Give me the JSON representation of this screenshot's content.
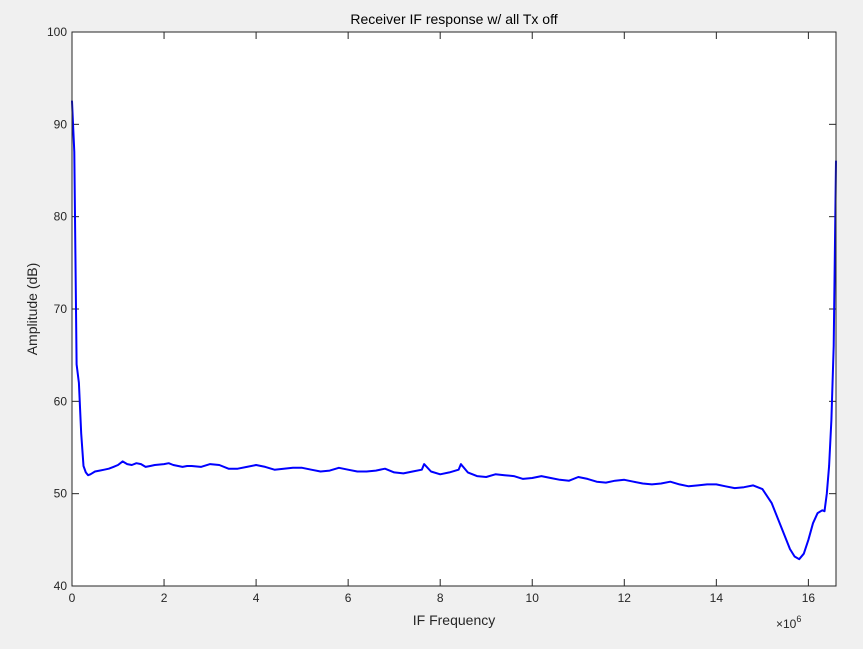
{
  "chart_data": {
    "type": "line",
    "title": "Receiver IF response w/ all Tx off",
    "xlabel": "IF Frequency",
    "ylabel": "Amplitude (dB)",
    "x_multiplier_base": "×10",
    "x_multiplier_exp": "6",
    "xlim": [
      0,
      16.6
    ],
    "ylim": [
      40,
      100
    ],
    "x_ticks": [
      0,
      2,
      4,
      6,
      8,
      10,
      12,
      14,
      16
    ],
    "x_tick_labels": [
      "0",
      "2",
      "4",
      "6",
      "8",
      "10",
      "12",
      "14",
      "16"
    ],
    "y_ticks": [
      40,
      50,
      60,
      70,
      80,
      90,
      100
    ],
    "y_tick_labels": [
      "40",
      "50",
      "60",
      "70",
      "80",
      "90",
      "100"
    ],
    "grid": false,
    "line_color": "#0000ff",
    "series": [
      {
        "x": [
          0,
          0.05,
          0.1,
          0.15,
          0.2,
          0.25,
          0.3,
          0.35,
          0.4,
          0.5,
          0.6,
          0.7,
          0.8,
          0.9,
          1.0,
          1.1,
          1.2,
          1.3,
          1.4,
          1.5,
          1.6,
          1.7,
          1.8,
          2.0,
          2.1,
          2.2,
          2.4,
          2.5,
          2.6,
          2.8,
          3.0,
          3.2,
          3.4,
          3.6,
          3.8,
          4.0,
          4.2,
          4.4,
          4.6,
          4.8,
          5.0,
          5.2,
          5.4,
          5.6,
          5.8,
          6.0,
          6.2,
          6.4,
          6.6,
          6.8,
          7.0,
          7.2,
          7.4,
          7.6,
          7.65,
          7.8,
          8.0,
          8.2,
          8.4,
          8.45,
          8.6,
          8.8,
          9.0,
          9.2,
          9.4,
          9.6,
          9.8,
          10.0,
          10.2,
          10.4,
          10.6,
          10.8,
          11.0,
          11.2,
          11.4,
          11.6,
          11.8,
          12.0,
          12.2,
          12.4,
          12.6,
          12.8,
          13.0,
          13.2,
          13.4,
          13.6,
          13.8,
          14.0,
          14.2,
          14.4,
          14.6,
          14.8,
          15.0,
          15.2,
          15.4,
          15.6,
          15.7,
          15.8,
          15.9,
          16.0,
          16.1,
          16.2,
          16.3,
          16.35,
          16.4,
          16.45,
          16.5,
          16.55,
          16.6
        ],
        "y": [
          92.5,
          87,
          64,
          62,
          56.5,
          53,
          52.3,
          52,
          52.1,
          52.4,
          52.5,
          52.6,
          52.7,
          52.9,
          53.1,
          53.5,
          53.2,
          53.1,
          53.3,
          53.2,
          52.9,
          53.0,
          53.1,
          53.2,
          53.3,
          53.1,
          52.9,
          53.0,
          53.0,
          52.9,
          53.2,
          53.1,
          52.7,
          52.7,
          52.9,
          53.1,
          52.9,
          52.6,
          52.7,
          52.8,
          52.8,
          52.6,
          52.4,
          52.5,
          52.8,
          52.6,
          52.4,
          52.4,
          52.5,
          52.7,
          52.3,
          52.2,
          52.4,
          52.6,
          53.2,
          52.4,
          52.1,
          52.3,
          52.6,
          53.2,
          52.3,
          51.9,
          51.8,
          52.1,
          52.0,
          51.9,
          51.6,
          51.7,
          51.9,
          51.7,
          51.5,
          51.4,
          51.8,
          51.6,
          51.3,
          51.2,
          51.4,
          51.5,
          51.3,
          51.1,
          51.0,
          51.1,
          51.3,
          51.0,
          50.8,
          50.9,
          51.0,
          51.0,
          50.8,
          50.6,
          50.7,
          50.9,
          50.5,
          49.0,
          46.5,
          44.0,
          43.2,
          42.9,
          43.5,
          45.0,
          46.8,
          47.9,
          48.2,
          48.1,
          50,
          53,
          58,
          66,
          86
        ]
      }
    ]
  }
}
